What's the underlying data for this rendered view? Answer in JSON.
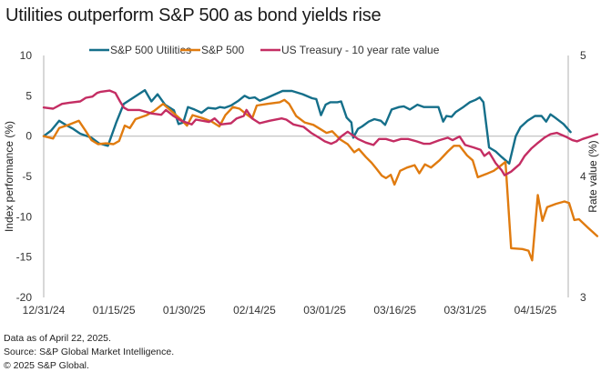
{
  "title": "Utilities outperform S&P 500 as bond yields rise",
  "footer": [
    "Data as of April 22, 2025.",
    "Source: S&P Global Market Intelligence.",
    "© 2025 S&P Global."
  ],
  "chart_data": {
    "type": "line",
    "title": "Utilities outperform S&P 500 as bond yields rise",
    "xlabel": "",
    "ylabel": "Index performance (%)",
    "y2label": "Rate value (%)",
    "ylim": [
      -20,
      10
    ],
    "y2lim": [
      3,
      5
    ],
    "yticks": [
      10,
      5,
      0,
      -5,
      -10,
      -15,
      -20
    ],
    "y2ticks": [
      5,
      4,
      3
    ],
    "xticks": [
      "12/31/24",
      "01/15/25",
      "01/30/25",
      "02/14/25",
      "03/01/25",
      "03/16/25",
      "03/31/25",
      "04/15/25"
    ],
    "xrange_days": [
      0,
      112
    ],
    "legend_position": "top",
    "grid": false,
    "series": [
      {
        "name": "S&P 500 Utilities",
        "axis": "left",
        "color": "#156f8a",
        "points": [
          [
            0,
            0
          ],
          [
            1.6,
            0.7
          ],
          [
            3.3,
            1.9
          ],
          [
            4.7,
            1.4
          ],
          [
            6.3,
            0.9
          ],
          [
            7.8,
            0.3
          ],
          [
            10.2,
            -0.2
          ],
          [
            11.8,
            -0.9
          ],
          [
            13.7,
            -1.2
          ],
          [
            15.5,
            1.7
          ],
          [
            17.1,
            4.0
          ],
          [
            21.6,
            5.7
          ],
          [
            23,
            4.3
          ],
          [
            24.3,
            5.2
          ],
          [
            25.9,
            3.9
          ],
          [
            27.8,
            3.2
          ],
          [
            28.8,
            1.5
          ],
          [
            29.8,
            1.7
          ],
          [
            30.8,
            3.6
          ],
          [
            32.2,
            3.3
          ],
          [
            33.7,
            2.9
          ],
          [
            35.1,
            3.5
          ],
          [
            36.7,
            3.4
          ],
          [
            37.6,
            3.6
          ],
          [
            38.6,
            3.5
          ],
          [
            40,
            3.8
          ],
          [
            41.6,
            4.4
          ],
          [
            42.9,
            5.0
          ],
          [
            43.9,
            4.7
          ],
          [
            45.1,
            4.8
          ],
          [
            46.1,
            4.4
          ],
          [
            47.5,
            4.7
          ],
          [
            49.4,
            5.2
          ],
          [
            51,
            5.6
          ],
          [
            53,
            5.6
          ],
          [
            55.3,
            5.2
          ],
          [
            57.3,
            4.7
          ],
          [
            58.2,
            4.6
          ],
          [
            59.2,
            2.6
          ],
          [
            60.2,
            3.9
          ],
          [
            61.2,
            4.2
          ],
          [
            62.7,
            4.2
          ],
          [
            63.5,
            4.3
          ],
          [
            64.7,
            2.3
          ],
          [
            65.7,
            1.7
          ],
          [
            66.1,
            -0.2
          ],
          [
            67.1,
            0.9
          ],
          [
            68,
            1.2
          ],
          [
            69.4,
            1.8
          ],
          [
            70.6,
            2.1
          ],
          [
            72,
            1.9
          ],
          [
            72.9,
            1.4
          ],
          [
            74.3,
            3.3
          ],
          [
            75.9,
            3.6
          ],
          [
            76.9,
            3.7
          ],
          [
            78.2,
            3.3
          ],
          [
            79.8,
            3.9
          ],
          [
            81.2,
            3.6
          ],
          [
            82.7,
            3.6
          ],
          [
            84.3,
            3.6
          ],
          [
            85.3,
            1.8
          ],
          [
            86,
            2.5
          ],
          [
            87.1,
            2.4
          ],
          [
            88,
            3.0
          ],
          [
            89.6,
            3.6
          ],
          [
            91,
            4.2
          ],
          [
            92.2,
            4.5
          ],
          [
            93.1,
            4.8
          ],
          [
            93.9,
            4.2
          ],
          [
            95.1,
            -1.4
          ],
          [
            96.5,
            -1.9
          ],
          [
            97.8,
            -2.6
          ],
          [
            99.4,
            -3.4
          ],
          [
            100.8,
            0
          ],
          [
            101.8,
            1.1
          ],
          [
            103.3,
            1.9
          ],
          [
            104.9,
            2.5
          ],
          [
            106.3,
            2.5
          ],
          [
            107.3,
            1.8
          ],
          [
            108.2,
            2.7
          ],
          [
            109.2,
            2.3
          ],
          [
            111,
            1.5
          ],
          [
            112.5,
            0.5
          ]
        ]
      },
      {
        "name": "S&P 500",
        "axis": "left",
        "color": "#e07b0f",
        "points": [
          [
            0,
            0
          ],
          [
            2,
            -0.3
          ],
          [
            3.3,
            1.0
          ],
          [
            5.3,
            1.4
          ],
          [
            7.5,
            1.9
          ],
          [
            9,
            0.6
          ],
          [
            10.2,
            -0.5
          ],
          [
            11.6,
            -1.0
          ],
          [
            13.3,
            -0.9
          ],
          [
            14.9,
            -1.0
          ],
          [
            16.1,
            -0.6
          ],
          [
            17.3,
            1.3
          ],
          [
            18.4,
            1.0
          ],
          [
            19.6,
            2.1
          ],
          [
            22,
            2.6
          ],
          [
            23.5,
            3.1
          ],
          [
            25.5,
            4.0
          ],
          [
            27.5,
            3.0
          ],
          [
            29.4,
            2.0
          ],
          [
            30.6,
            1.3
          ],
          [
            31.8,
            2.6
          ],
          [
            34.1,
            2.2
          ],
          [
            35.9,
            1.8
          ],
          [
            37.5,
            1.2
          ],
          [
            38.8,
            2.6
          ],
          [
            40.4,
            3.6
          ],
          [
            41.8,
            3.4
          ],
          [
            43.3,
            2.7
          ],
          [
            44.5,
            2.2
          ],
          [
            45.5,
            3.8
          ],
          [
            47.8,
            4.0
          ],
          [
            50.4,
            4.2
          ],
          [
            51.4,
            4.5
          ],
          [
            52.4,
            4.0
          ],
          [
            53.9,
            2.5
          ],
          [
            55.7,
            1.7
          ],
          [
            57.6,
            1.4
          ],
          [
            59,
            0.9
          ],
          [
            60.4,
            0.4
          ],
          [
            61.6,
            0.6
          ],
          [
            63.3,
            -0.4
          ],
          [
            64.9,
            -1.0
          ],
          [
            66.3,
            -2.0
          ],
          [
            67.3,
            -1.6
          ],
          [
            68.8,
            -2.6
          ],
          [
            70,
            -3.3
          ],
          [
            71,
            -4.0
          ],
          [
            72.2,
            -4.9
          ],
          [
            73.1,
            -5.2
          ],
          [
            74.1,
            -4.8
          ],
          [
            74.9,
            -6.0
          ],
          [
            76.1,
            -4.3
          ],
          [
            77.6,
            -3.9
          ],
          [
            79.2,
            -3.6
          ],
          [
            80.2,
            -4.6
          ],
          [
            81.4,
            -3.5
          ],
          [
            82.7,
            -3.9
          ],
          [
            84.5,
            -3.0
          ],
          [
            86.3,
            -1.9
          ],
          [
            87.6,
            -1.2
          ],
          [
            88.8,
            -1.2
          ],
          [
            90.4,
            -2.4
          ],
          [
            91.6,
            -3.0
          ],
          [
            92.7,
            -5.1
          ],
          [
            94.5,
            -4.7
          ],
          [
            96.1,
            -4.3
          ],
          [
            97.5,
            -3.7
          ],
          [
            98.6,
            -3.2
          ],
          [
            99.8,
            -13.9
          ],
          [
            102.2,
            -14.0
          ],
          [
            103.5,
            -14.2
          ],
          [
            104.3,
            -15.4
          ],
          [
            105.5,
            -7.3
          ],
          [
            106.5,
            -10.5
          ],
          [
            107.5,
            -8.8
          ],
          [
            109.4,
            -8.4
          ],
          [
            111.2,
            -8.1
          ],
          [
            112.2,
            -8.3
          ],
          [
            113.3,
            -10.4
          ],
          [
            114.3,
            -10.3
          ],
          [
            116.3,
            -11.4
          ],
          [
            118.2,
            -12.4
          ]
        ]
      },
      {
        "name": "US Treasury - 10 year rate value",
        "axis": "right",
        "color": "#c42d63",
        "points": [
          [
            0,
            4.57
          ],
          [
            2,
            4.56
          ],
          [
            3.9,
            4.6
          ],
          [
            5.5,
            4.61
          ],
          [
            7.8,
            4.62
          ],
          [
            9,
            4.65
          ],
          [
            10.4,
            4.66
          ],
          [
            11.4,
            4.69
          ],
          [
            12.2,
            4.7
          ],
          [
            14.1,
            4.71
          ],
          [
            15.3,
            4.69
          ],
          [
            16.3,
            4.62
          ],
          [
            17.1,
            4.57
          ],
          [
            18,
            4.55
          ],
          [
            20.4,
            4.55
          ],
          [
            23.1,
            4.52
          ],
          [
            25.1,
            4.51
          ],
          [
            26.1,
            4.55
          ],
          [
            27.7,
            4.5
          ],
          [
            29.4,
            4.46
          ],
          [
            31.6,
            4.43
          ],
          [
            32.5,
            4.47
          ],
          [
            35.3,
            4.45
          ],
          [
            36.5,
            4.48
          ],
          [
            37.8,
            4.43
          ],
          [
            40,
            4.44
          ],
          [
            41.2,
            4.48
          ],
          [
            42.7,
            4.5
          ],
          [
            43.3,
            4.55
          ],
          [
            44.5,
            4.48
          ],
          [
            46.1,
            4.44
          ],
          [
            48.2,
            4.46
          ],
          [
            50.8,
            4.48
          ],
          [
            51.8,
            4.47
          ],
          [
            53.3,
            4.43
          ],
          [
            55.5,
            4.41
          ],
          [
            57.1,
            4.36
          ],
          [
            58.8,
            4.32
          ],
          [
            60,
            4.29
          ],
          [
            61.4,
            4.27
          ],
          [
            62.5,
            4.29
          ],
          [
            63.5,
            4.33
          ],
          [
            64.9,
            4.37
          ],
          [
            67.1,
            4.31
          ],
          [
            68.8,
            4.28
          ],
          [
            70.4,
            4.26
          ],
          [
            71.6,
            4.31
          ],
          [
            73.1,
            4.31
          ],
          [
            74.7,
            4.29
          ],
          [
            76.3,
            4.31
          ],
          [
            77.8,
            4.31
          ],
          [
            79.6,
            4.29
          ],
          [
            81.2,
            4.27
          ],
          [
            82.4,
            4.27
          ],
          [
            84.5,
            4.3
          ],
          [
            86.3,
            4.32
          ],
          [
            87.3,
            4.3
          ],
          [
            88.8,
            4.33
          ],
          [
            90,
            4.26
          ],
          [
            91.8,
            4.24
          ],
          [
            93.3,
            4.22
          ],
          [
            94.1,
            4.17
          ],
          [
            95.1,
            4.2
          ],
          [
            96.5,
            4.11
          ],
          [
            97.8,
            4.05
          ],
          [
            98.4,
            4.01
          ],
          [
            99.8,
            4.04
          ],
          [
            101.6,
            4.1
          ],
          [
            102.7,
            4.17
          ],
          [
            104.1,
            4.23
          ],
          [
            105.3,
            4.27
          ],
          [
            106.9,
            4.32
          ],
          [
            108.2,
            4.35
          ],
          [
            109.6,
            4.36
          ],
          [
            111.4,
            4.33
          ],
          [
            112.9,
            4.3
          ],
          [
            113.9,
            4.29
          ],
          [
            115.1,
            4.31
          ],
          [
            116.7,
            4.33
          ],
          [
            118.2,
            4.35
          ]
        ]
      }
    ]
  }
}
